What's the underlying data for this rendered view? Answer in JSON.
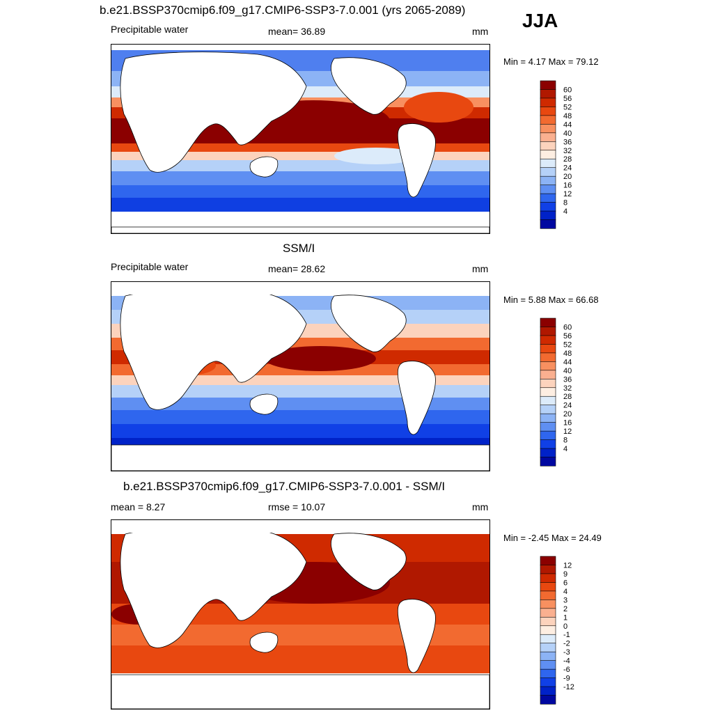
{
  "season": "JJA",
  "panels": [
    {
      "title": "b.e21.BSSP370cmip6.f09_g17.CMIP6-SSP3-7.0.001 (yrs 2065-2089)",
      "left": "Precipitable water",
      "center": "mean=  36.89",
      "right": "mm",
      "minmax": "Min =   4.17 Max =  79.12",
      "colorbar": {
        "labels": [
          "60",
          "56",
          "52",
          "48",
          "44",
          "40",
          "36",
          "32",
          "28",
          "24",
          "20",
          "16",
          "12",
          "8",
          "4"
        ],
        "colors": [
          "#8b0000",
          "#b01800",
          "#cf2a00",
          "#e84810",
          "#f26a30",
          "#f89060",
          "#fab090",
          "#fcd3bd",
          "#fdeee2",
          "#dcebfa",
          "#b5d1f8",
          "#8cb3f5",
          "#5f8ff2",
          "#2f66ee",
          "#1040e6",
          "#0022c8",
          "#0008a0"
        ]
      }
    },
    {
      "title": "SSM/I",
      "left": "Precipitable water",
      "center": "mean=  28.62",
      "right": "mm",
      "minmax": "Min =   5.88 Max =  66.68",
      "colorbar": {
        "labels": [
          "60",
          "56",
          "52",
          "48",
          "44",
          "40",
          "36",
          "32",
          "28",
          "24",
          "20",
          "16",
          "12",
          "8",
          "4"
        ],
        "colors": [
          "#8b0000",
          "#b01800",
          "#cf2a00",
          "#e84810",
          "#f26a30",
          "#f89060",
          "#fab090",
          "#fcd3bd",
          "#fdeee2",
          "#dcebfa",
          "#b5d1f8",
          "#8cb3f5",
          "#5f8ff2",
          "#2f66ee",
          "#1040e6",
          "#0022c8",
          "#0008a0"
        ]
      }
    },
    {
      "title": "b.e21.BSSP370cmip6.f09_g17.CMIP6-SSP3-7.0.001 - SSM/I",
      "left": "mean =   8.27",
      "center": "rmse =  10.07",
      "right": "mm",
      "minmax": "Min =  -2.45 Max =  24.49",
      "colorbar": {
        "labels": [
          "12",
          "9",
          "6",
          "4",
          "3",
          "2",
          "1",
          "0",
          "-1",
          "-2",
          "-3",
          "-4",
          "-6",
          "-9",
          "-12"
        ],
        "colors": [
          "#8b0000",
          "#b01800",
          "#cf2a00",
          "#e84810",
          "#f26a30",
          "#f89060",
          "#fab090",
          "#fcd3bd",
          "#fdeee2",
          "#dcebfa",
          "#b5d1f8",
          "#8cb3f5",
          "#5f8ff2",
          "#2f66ee",
          "#1040e6",
          "#0022c8",
          "#0008a0"
        ]
      }
    }
  ],
  "chart_data": [
    {
      "type": "heatmap",
      "title": "b.e21.BSSP370cmip6.f09_g17.CMIP6-SSP3-7.0.001 (yrs 2065-2089)",
      "variable": "Precipitable water",
      "units": "mm",
      "mean": 36.89,
      "min": 4.17,
      "max": 79.12,
      "levels": [
        4,
        8,
        12,
        16,
        20,
        24,
        28,
        32,
        36,
        40,
        44,
        48,
        52,
        56,
        60
      ]
    },
    {
      "type": "heatmap",
      "title": "SSM/I",
      "variable": "Precipitable water",
      "units": "mm",
      "mean": 28.62,
      "min": 5.88,
      "max": 66.68,
      "levels": [
        4,
        8,
        12,
        16,
        20,
        24,
        28,
        32,
        36,
        40,
        44,
        48,
        52,
        56,
        60
      ]
    },
    {
      "type": "heatmap",
      "title": "b.e21.BSSP370cmip6.f09_g17.CMIP6-SSP3-7.0.001 - SSM/I",
      "units": "mm",
      "mean": 8.27,
      "rmse": 10.07,
      "min": -2.45,
      "max": 24.49,
      "levels": [
        -12,
        -9,
        -6,
        -4,
        -3,
        -2,
        -1,
        0,
        1,
        2,
        3,
        4,
        6,
        9,
        12
      ]
    }
  ]
}
